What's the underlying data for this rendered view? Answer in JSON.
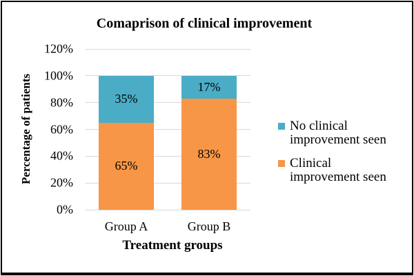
{
  "chart_data": {
    "type": "stacked-bar",
    "title": "Comaprison of clinical improvement",
    "xlabel": "Treatment groups",
    "ylabel": "Percentage of patients",
    "categories": [
      "Group A",
      "Group B"
    ],
    "series": [
      {
        "name": "Clinical improvement seen",
        "color": "#F79646",
        "values": [
          65,
          83
        ],
        "labels": [
          "65%",
          "83%"
        ]
      },
      {
        "name": "No clinical improvement seen",
        "color": "#4BACC6",
        "values": [
          35,
          17
        ],
        "labels": [
          "35%",
          "17%"
        ]
      }
    ],
    "y_ticks": [
      "0%",
      "20%",
      "40%",
      "60%",
      "80%",
      "100%",
      "120%"
    ],
    "ylim": [
      0,
      120
    ],
    "grid": true,
    "gridline_color": "#D9D9D9",
    "legend_position": "right",
    "legend": {
      "items": [
        {
          "label": "No clinical improvement seen",
          "color": "#4BACC6"
        },
        {
          "label": "Clinical improvement seen",
          "color": "#F79646"
        }
      ]
    },
    "colors": {
      "no_improvement": "#4BACC6",
      "improvement": "#F79646",
      "text": "#000000",
      "border": "#000000"
    }
  }
}
